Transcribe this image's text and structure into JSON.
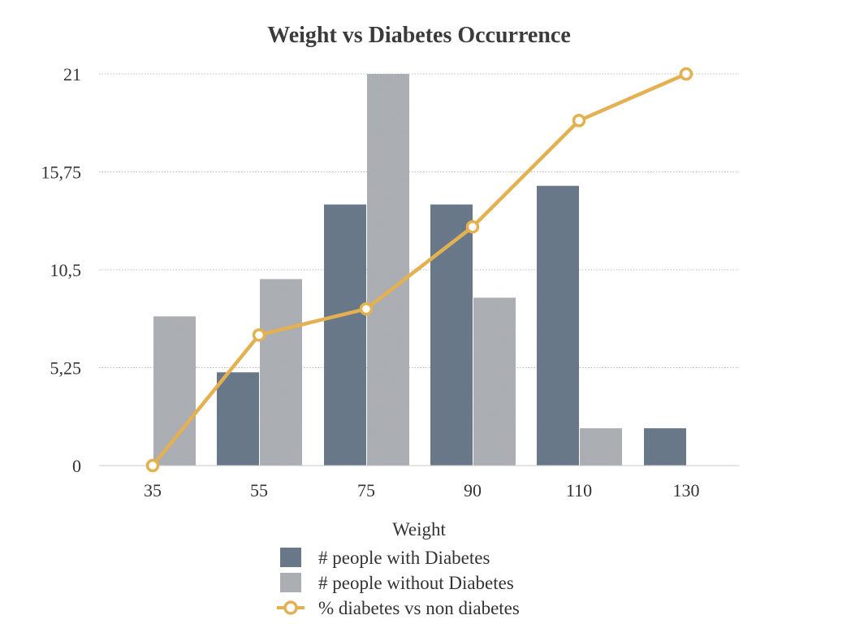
{
  "chart_data": {
    "type": "bar",
    "title": "Weight vs Diabetes Occurrence",
    "xlabel": "Weight",
    "ylabel": "",
    "categories": [
      "35",
      "55",
      "75",
      "90",
      "110",
      "130"
    ],
    "y_ticks": [
      "0",
      "5,25",
      "10,5",
      "15,75",
      "21"
    ],
    "ylim": [
      0,
      21
    ],
    "grid": true,
    "legend_position": "bottom",
    "series": [
      {
        "name": "# people with Diabetes",
        "kind": "bar",
        "color": "#6b7b8c",
        "values": [
          0,
          5,
          14,
          14,
          15,
          2
        ]
      },
      {
        "name": "# people without Diabetes",
        "kind": "bar",
        "color": "#aeb1b6",
        "values": [
          8,
          10,
          21,
          9,
          2,
          0
        ]
      },
      {
        "name": "% diabetes vs non diabetes",
        "kind": "line",
        "color": "#e3b152",
        "values": [
          0,
          7,
          8.4,
          12.8,
          18.5,
          21
        ]
      }
    ]
  }
}
